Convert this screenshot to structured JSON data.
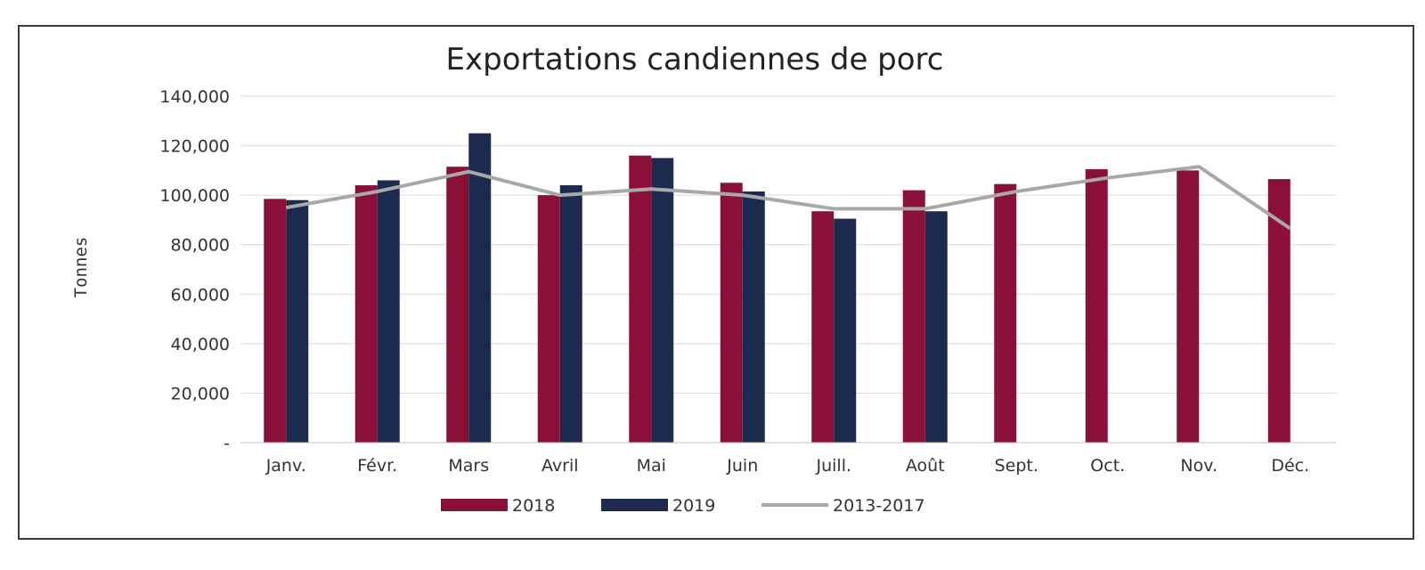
{
  "chart_data": {
    "type": "bar",
    "title": "Exportations candiennes de porc",
    "xlabel": "",
    "ylabel": "Tonnes",
    "ylim": [
      0,
      140000
    ],
    "yticks": [
      0,
      20000,
      40000,
      60000,
      80000,
      100000,
      120000,
      140000
    ],
    "ytick_labels": [
      "-",
      "20,000",
      "40,000",
      "60,000",
      "80,000",
      "100,000",
      "120,000",
      "140,000"
    ],
    "categories": [
      "Janv.",
      "Févr.",
      "Mars",
      "Avril",
      "Mai",
      "Juin",
      "Juill.",
      "Août",
      "Sept.",
      "Oct.",
      "Nov.",
      "Déc."
    ],
    "grid": true,
    "legend_position": "bottom",
    "series": [
      {
        "name": "2018",
        "kind": "bar",
        "color": "#8b1038",
        "values": [
          98500,
          104000,
          111500,
          100000,
          116000,
          105000,
          93500,
          102000,
          104500,
          110500,
          110000,
          106500
        ]
      },
      {
        "name": "2019",
        "kind": "bar",
        "color": "#1b2a4d",
        "values": [
          98000,
          106000,
          125000,
          104000,
          115000,
          101500,
          90500,
          93500,
          null,
          null,
          null,
          null
        ]
      },
      {
        "name": "2013-2017",
        "kind": "line",
        "color": "#a8a8a8",
        "values": [
          95000,
          101500,
          109500,
          100000,
          102500,
          100000,
          94500,
          94500,
          101500,
          107000,
          111500,
          86500
        ]
      }
    ]
  }
}
